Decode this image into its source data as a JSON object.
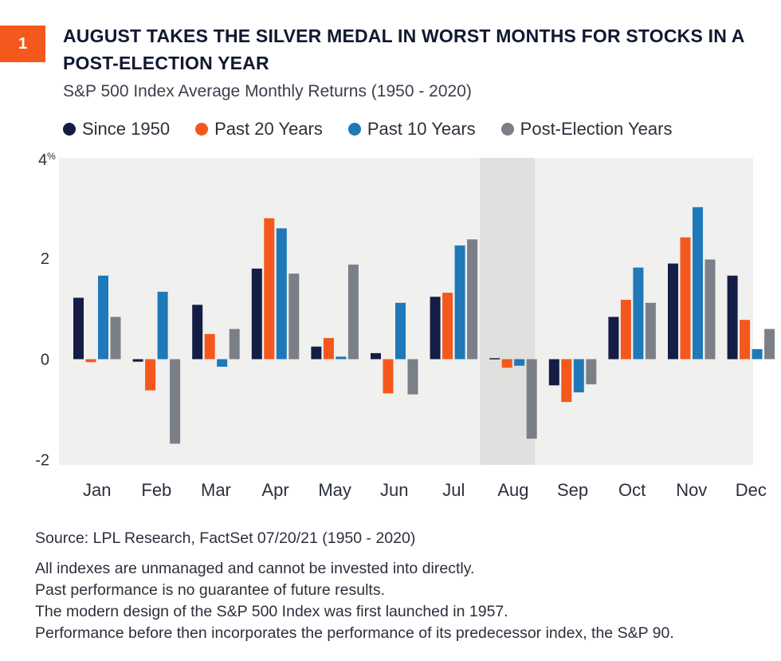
{
  "badge": "1",
  "title": "AUGUST TAKES THE SILVER MEDAL IN WORST MONTHS FOR STOCKS IN A POST-ELECTION YEAR",
  "subtitle": "S&P 500 Index Average Monthly Returns (1950 - 2020)",
  "colors": {
    "since1950": "#141d45",
    "past20": "#f4581c",
    "past10": "#1f78b8",
    "postElection": "#7a7f88",
    "plotBg": "#f0f0ee",
    "highlight": "#e0e0de"
  },
  "chart_data": {
    "type": "bar",
    "categories": [
      "Jan",
      "Feb",
      "Mar",
      "Apr",
      "May",
      "Jun",
      "Jul",
      "Aug",
      "Sep",
      "Oct",
      "Nov",
      "Dec"
    ],
    "series": [
      {
        "name": "Since 1950",
        "values": [
          1.22,
          -0.05,
          1.08,
          1.8,
          0.25,
          0.12,
          1.24,
          0.02,
          -0.52,
          0.84,
          1.9,
          1.66
        ]
      },
      {
        "name": "Past 20 Years",
        "values": [
          -0.06,
          -0.62,
          0.5,
          2.8,
          0.42,
          -0.68,
          1.32,
          -0.17,
          -0.85,
          1.18,
          2.42,
          0.78
        ]
      },
      {
        "name": "Past 10 Years",
        "values": [
          1.66,
          1.34,
          -0.15,
          2.6,
          0.05,
          1.12,
          2.26,
          -0.13,
          -0.66,
          1.82,
          3.02,
          0.2
        ]
      },
      {
        "name": "Post-Election Years",
        "values": [
          0.84,
          -1.68,
          0.6,
          1.7,
          1.88,
          -0.7,
          2.38,
          -1.58,
          -0.5,
          1.12,
          1.98,
          0.6
        ]
      }
    ],
    "ylim": [
      -2.1,
      4
    ],
    "yticks": [
      {
        "value": 4,
        "label": "4%"
      },
      {
        "value": 2,
        "label": "2"
      },
      {
        "value": 0,
        "label": "0"
      },
      {
        "value": -2,
        "label": "-2"
      }
    ],
    "highlight_category": "Aug",
    "grid": false,
    "legend_position": "top"
  },
  "footer": {
    "source": "Source: LPL Research, FactSet  07/20/21  (1950 - 2020)",
    "notes": [
      "All indexes are unmanaged and cannot be invested into directly.",
      "Past performance is no guarantee of future results.",
      "The modern design of the S&P 500 Index was first launched in 1957.",
      "Performance before then incorporates the performance of its predecessor index, the S&P 90."
    ]
  }
}
